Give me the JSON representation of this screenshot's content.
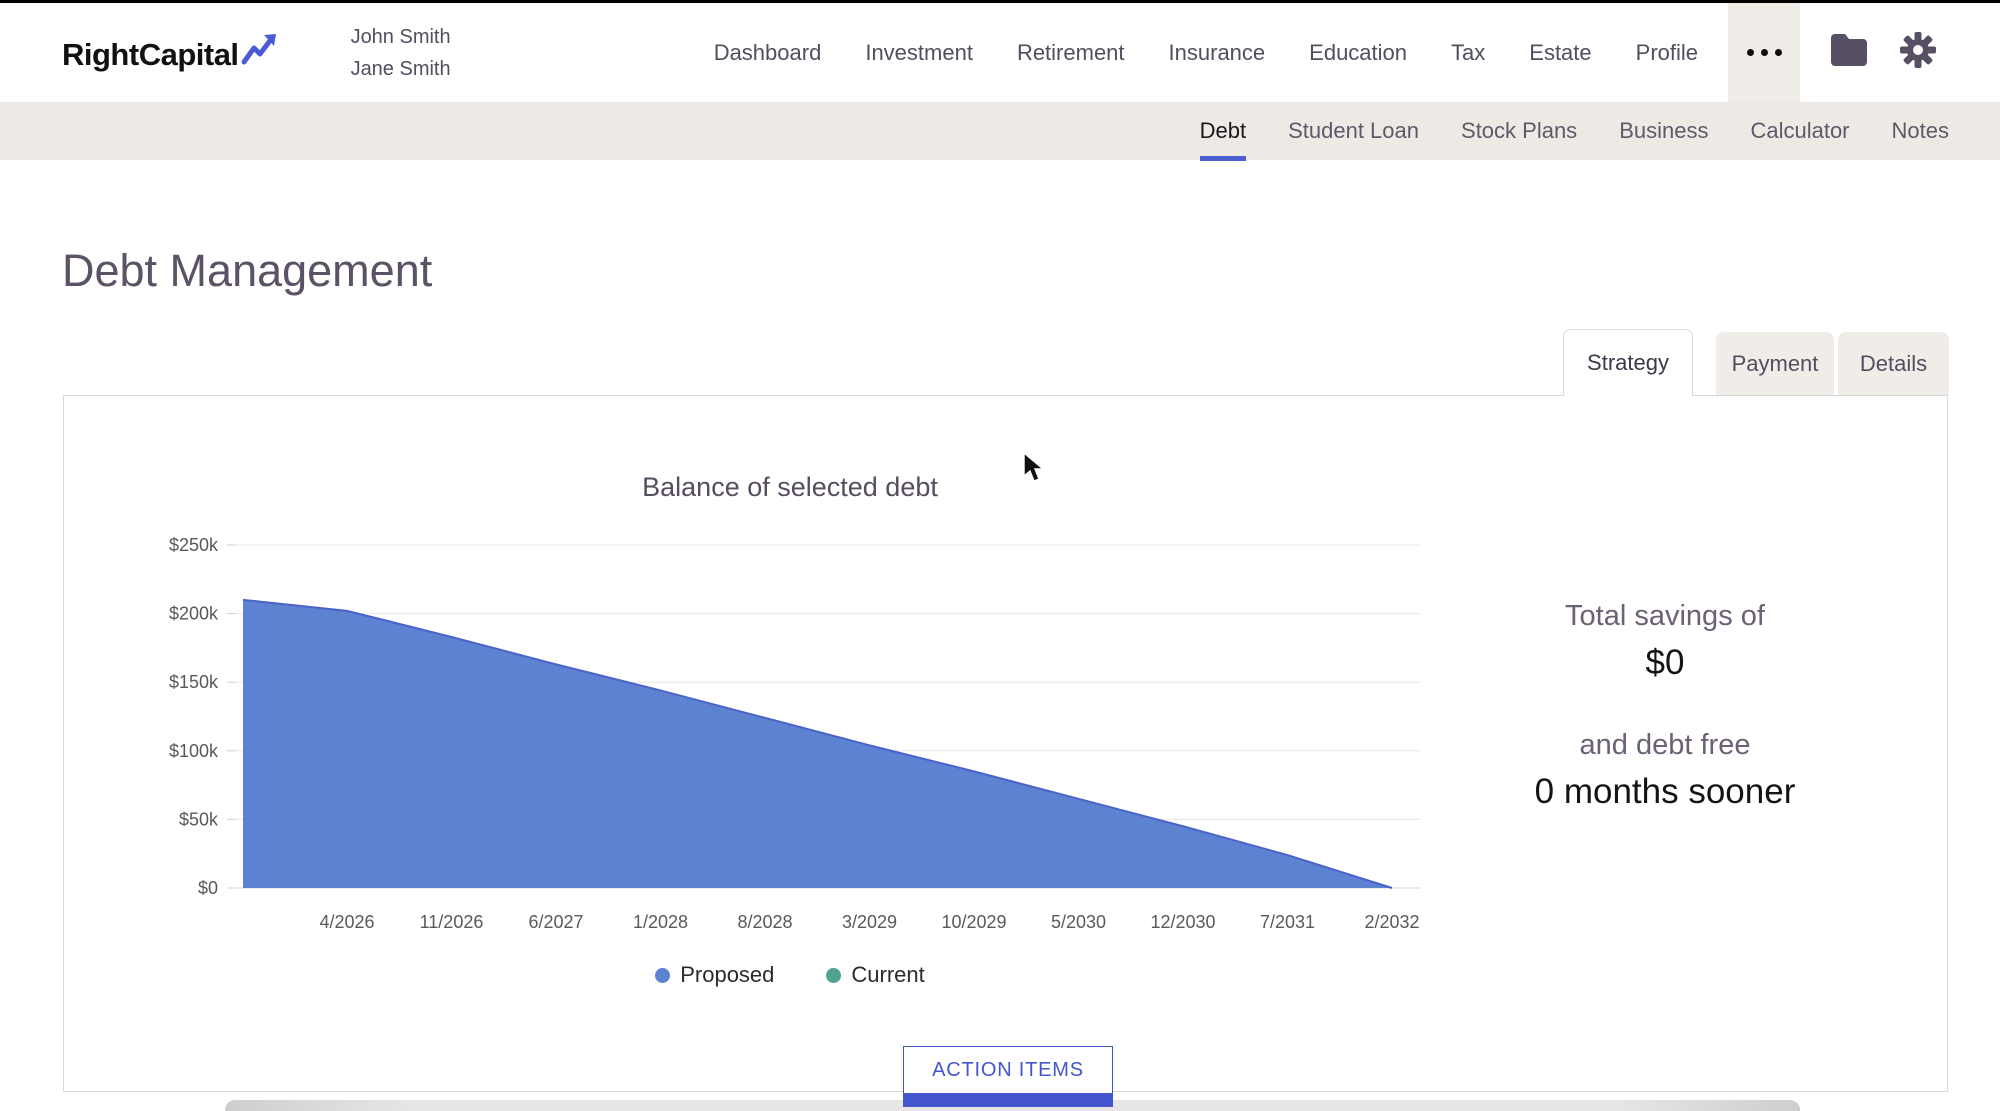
{
  "brand": {
    "name": "RightCapital",
    "arrow_icon": "trend-up-arrow"
  },
  "header": {
    "client_names": [
      "John Smith",
      "Jane Smith"
    ],
    "nav_items": [
      "Dashboard",
      "Investment",
      "Retirement",
      "Insurance",
      "Education",
      "Tax",
      "Estate",
      "Profile"
    ],
    "more_icon": "ellipsis-icon",
    "folder_icon": "folder-icon",
    "gear_icon": "gear-icon"
  },
  "subnav": {
    "items": [
      {
        "label": "Debt",
        "active": true
      },
      {
        "label": "Student Loan",
        "active": false
      },
      {
        "label": "Stock Plans",
        "active": false
      },
      {
        "label": "Business",
        "active": false
      },
      {
        "label": "Calculator",
        "active": false
      },
      {
        "label": "Notes",
        "active": false
      }
    ]
  },
  "page": {
    "title": "Debt Management"
  },
  "tabs": [
    {
      "label": "Strategy",
      "active": true
    },
    {
      "label": "Payment",
      "active": false
    },
    {
      "label": "Details",
      "active": false
    }
  ],
  "summary": {
    "line1": "Total savings of",
    "amount": "$0",
    "line2": "and debt free",
    "line3": "0 months sooner"
  },
  "actions": {
    "action_items_label": "ACTION ITEMS"
  },
  "colors": {
    "accent_blue": "#4456cd",
    "active_underline": "#4c5ed2",
    "subnav_bg": "#edeae5",
    "area_fill": "#5e82d2",
    "area_stroke": "#4a63c8",
    "legend_teal": "#4fa28e",
    "axis_text": "#595959",
    "gridline": "#e7e7e7"
  },
  "chart_data": {
    "type": "area",
    "title": "Balance of selected debt",
    "xlabel": "",
    "ylabel": "",
    "ylim": [
      0,
      250000
    ],
    "grid": "horizontal",
    "legend_position": "bottom",
    "y_ticks": [
      {
        "label": "$250k",
        "v": 250000
      },
      {
        "label": "$200k",
        "v": 200000
      },
      {
        "label": "$150k",
        "v": 150000
      },
      {
        "label": "$100k",
        "v": 100000
      },
      {
        "label": "$50k",
        "v": 50000
      },
      {
        "label": "$0",
        "v": 0
      }
    ],
    "x_tick_labels": [
      "4/2026",
      "11/2026",
      "6/2027",
      "1/2028",
      "8/2028",
      "3/2029",
      "10/2029",
      "5/2030",
      "12/2030",
      "7/2031",
      "2/2032"
    ],
    "x_points": [
      "9/2025",
      "4/2026",
      "11/2026",
      "6/2027",
      "1/2028",
      "8/2028",
      "3/2029",
      "10/2029",
      "5/2030",
      "12/2030",
      "7/2031",
      "2/2032"
    ],
    "series": [
      {
        "name": "Current",
        "color": "#4fa28e",
        "values": [
          210000,
          202000,
          183000,
          163000,
          144000,
          124000,
          104000,
          85000,
          65000,
          45000,
          24000,
          0
        ],
        "note": "hidden — overlaps Proposed exactly"
      },
      {
        "name": "Proposed",
        "color": "#5e82d2",
        "values": [
          210000,
          202000,
          183000,
          163000,
          144000,
          124000,
          104000,
          85000,
          65000,
          45000,
          24000,
          0
        ]
      }
    ],
    "legend_order": [
      "Proposed",
      "Current"
    ]
  }
}
